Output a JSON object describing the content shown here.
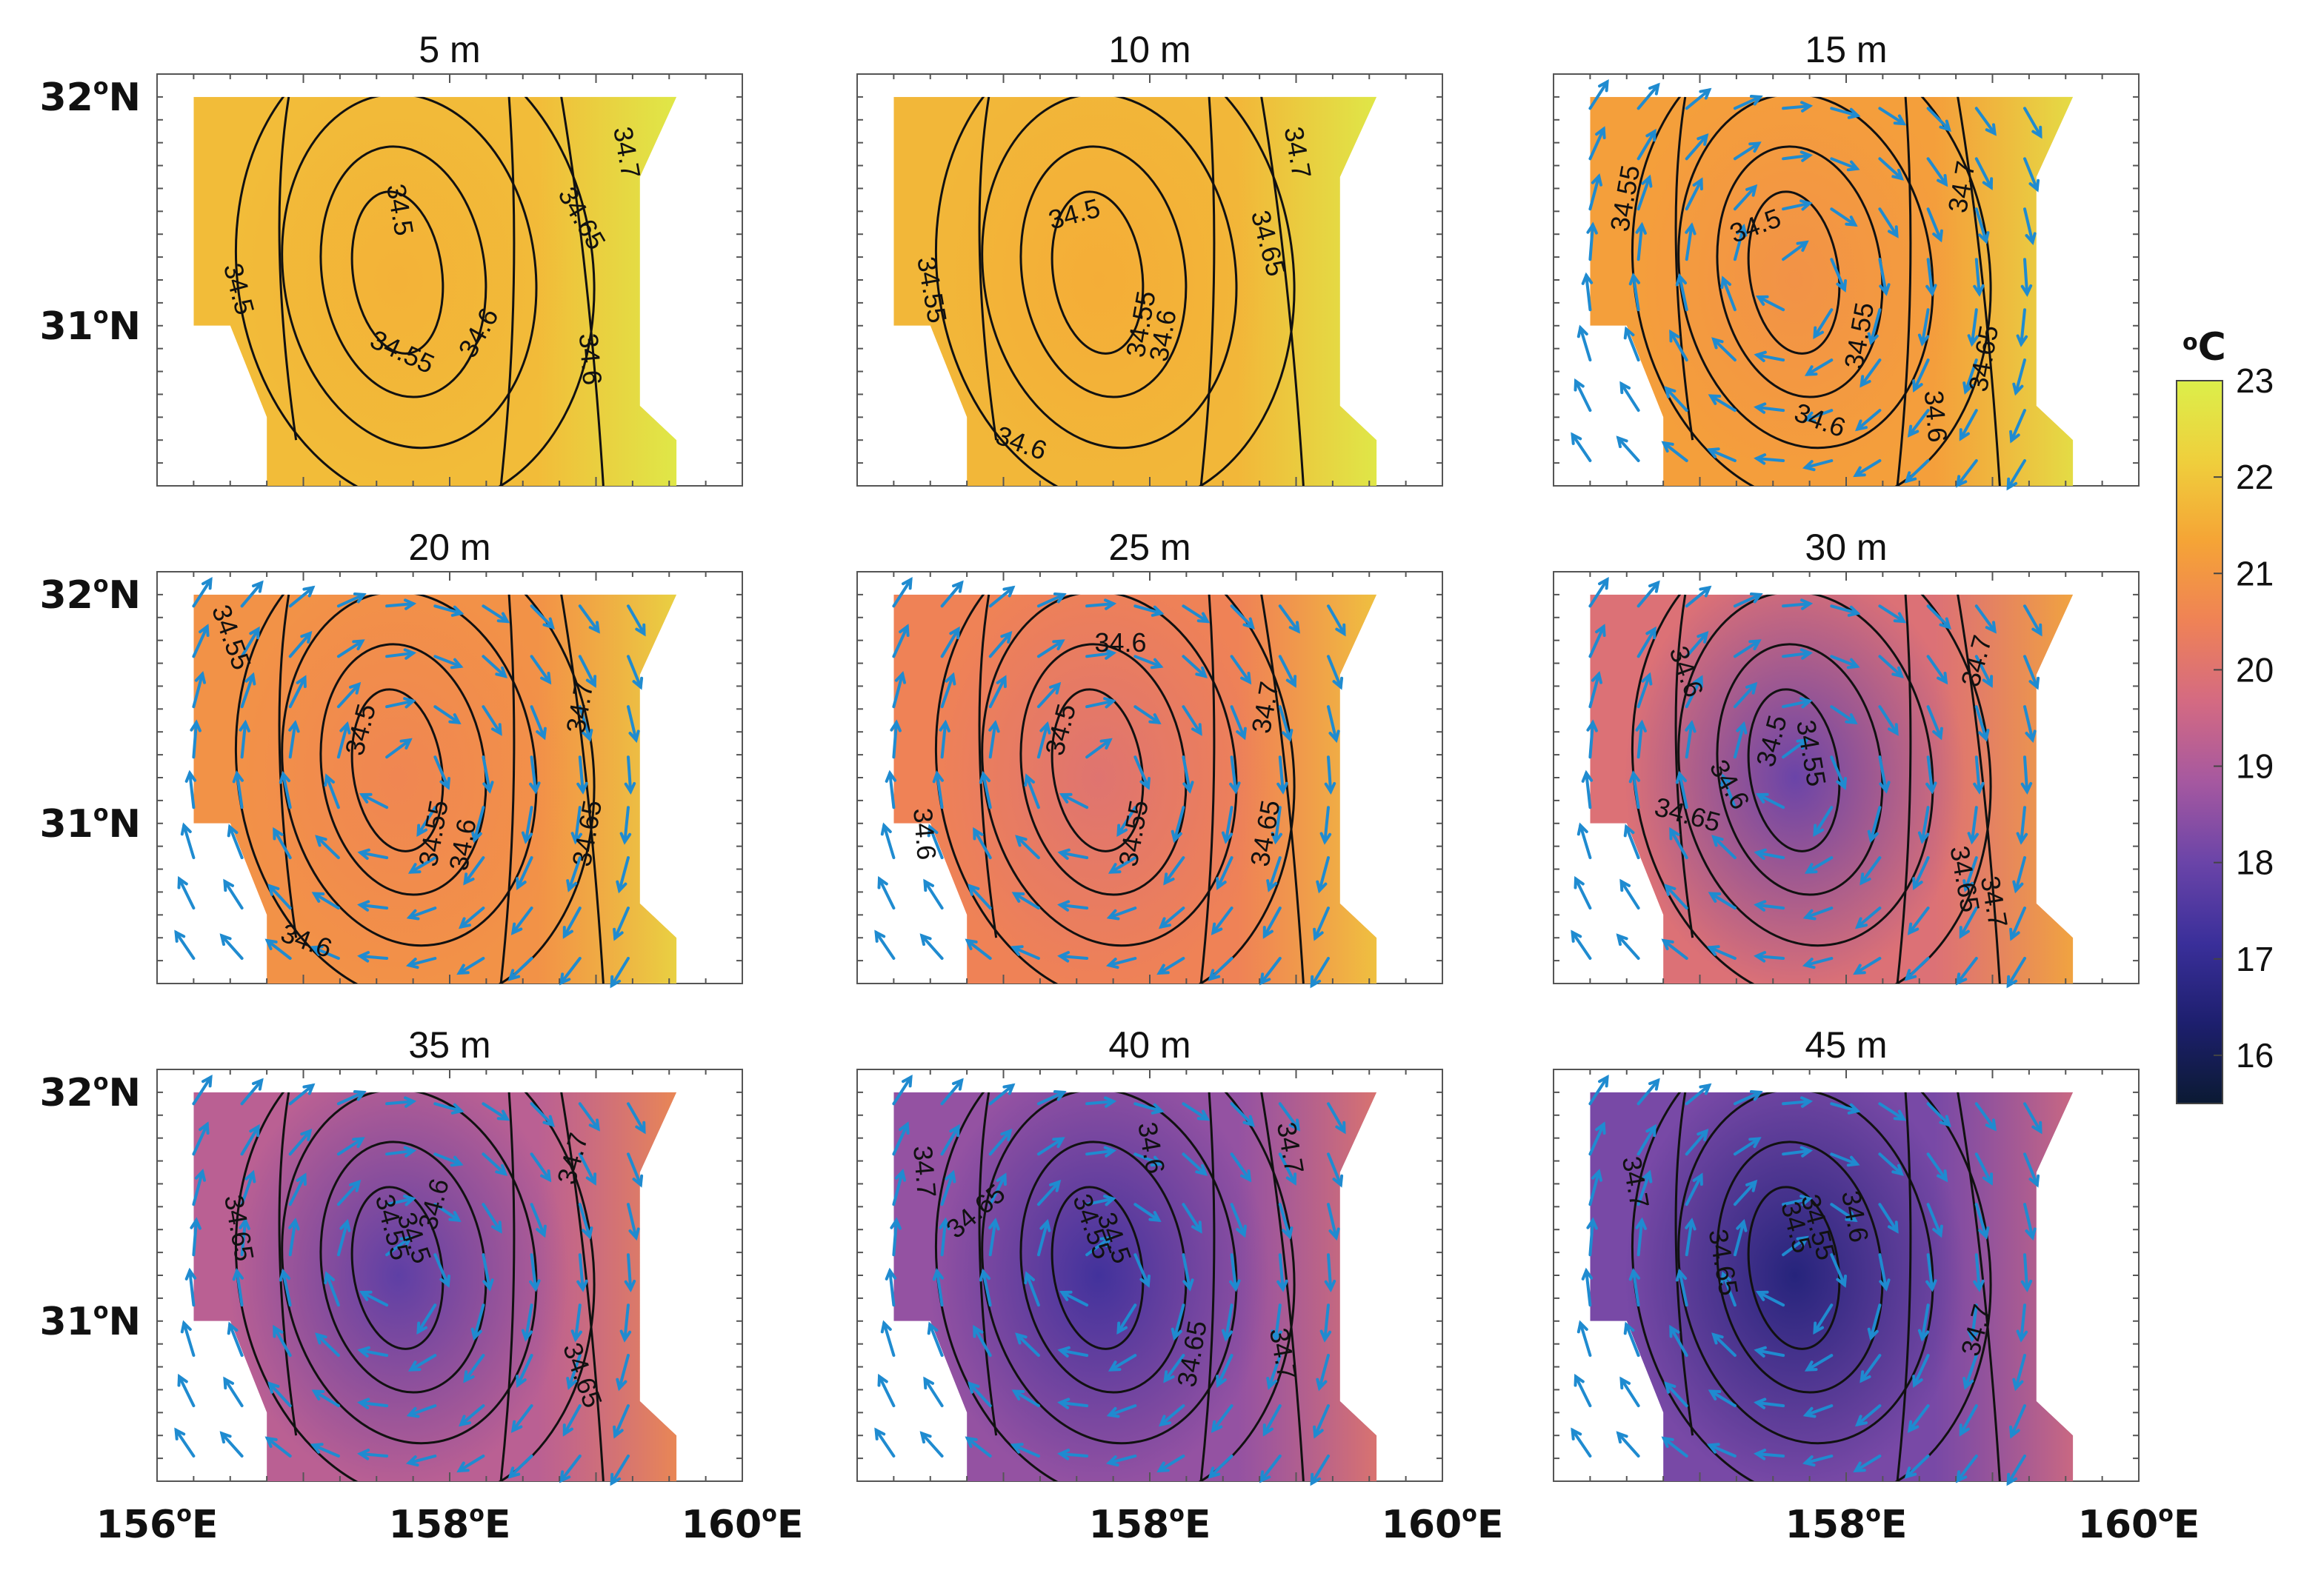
{
  "chart_data": {
    "type": "heatmap",
    "x_ticks": [
      {
        "value": 156,
        "deg": "156",
        "sup": "o",
        "hemi": "E"
      },
      {
        "value": 158,
        "deg": "158",
        "sup": "o",
        "hemi": "E"
      },
      {
        "value": 160,
        "deg": "160",
        "sup": "o",
        "hemi": "E"
      }
    ],
    "y_ticks": [
      {
        "value": 32,
        "deg": "32",
        "sup": "o",
        "hemi": "N"
      },
      {
        "value": 31,
        "deg": "31",
        "sup": "o",
        "hemi": "N"
      }
    ],
    "xlim": [
      156,
      160
    ],
    "ylim": [
      30.3,
      32.1
    ],
    "colorbar": {
      "unit_sup": "o",
      "unit": "C",
      "ticks": [
        23,
        22,
        21,
        20,
        19,
        18,
        17,
        16
      ],
      "range": [
        15.5,
        23
      ],
      "colors": [
        "#0b1a33",
        "#1d1f6e",
        "#3a2f9a",
        "#6a44a8",
        "#a558a0",
        "#d46a82",
        "#ef8256",
        "#f5a436",
        "#efcf3c",
        "#dcef4a"
      ]
    },
    "panels": [
      {
        "title": "5 m",
        "depth": 5,
        "mean_temp": 21.8,
        "core_temp": 21.6,
        "vectors": false,
        "contour_labels": [
          {
            "text": "34.5",
            "lon": 157.6,
            "lat": 31.5,
            "rot": 80
          },
          {
            "text": "34.5",
            "lon": 156.5,
            "lat": 31.15,
            "rot": 75
          },
          {
            "text": "34.55",
            "lon": 157.65,
            "lat": 30.85,
            "rot": 25
          },
          {
            "text": "34.6",
            "lon": 158.25,
            "lat": 30.95,
            "rot": -60
          },
          {
            "text": "34.65",
            "lon": 158.85,
            "lat": 31.45,
            "rot": 60
          },
          {
            "text": "34.6",
            "lon": 158.9,
            "lat": 30.85,
            "rot": 85
          },
          {
            "text": "34.7",
            "lon": 159.15,
            "lat": 31.75,
            "rot": 80
          }
        ]
      },
      {
        "title": "10 m",
        "depth": 10,
        "mean_temp": 21.7,
        "core_temp": 21.5,
        "vectors": false,
        "contour_labels": [
          {
            "text": "34.5",
            "lon": 157.5,
            "lat": 31.45,
            "rot": -15
          },
          {
            "text": "34.55",
            "lon": 156.45,
            "lat": 31.15,
            "rot": 80
          },
          {
            "text": "34.55",
            "lon": 158.0,
            "lat": 31.0,
            "rot": -80
          },
          {
            "text": "34.6",
            "lon": 158.15,
            "lat": 30.95,
            "rot": -80
          },
          {
            "text": "34.65",
            "lon": 158.75,
            "lat": 31.35,
            "rot": 75
          },
          {
            "text": "34.7",
            "lon": 158.95,
            "lat": 31.75,
            "rot": 80
          },
          {
            "text": "34.6",
            "lon": 157.1,
            "lat": 30.45,
            "rot": 20
          }
        ]
      },
      {
        "title": "15 m",
        "depth": 15,
        "mean_temp": 21.2,
        "core_temp": 20.9,
        "vectors": true,
        "contour_labels": [
          {
            "text": "34.55",
            "lon": 156.55,
            "lat": 31.55,
            "rot": -80
          },
          {
            "text": "34.5",
            "lon": 157.4,
            "lat": 31.4,
            "rot": -20
          },
          {
            "text": "34.55",
            "lon": 158.15,
            "lat": 30.95,
            "rot": -80
          },
          {
            "text": "34.6",
            "lon": 157.8,
            "lat": 30.55,
            "rot": 20
          },
          {
            "text": "34.6",
            "lon": 158.55,
            "lat": 30.6,
            "rot": 85
          },
          {
            "text": "34.65",
            "lon": 159.0,
            "lat": 30.85,
            "rot": -80
          },
          {
            "text": "34.7",
            "lon": 158.85,
            "lat": 31.6,
            "rot": -80
          }
        ]
      },
      {
        "title": "20 m",
        "depth": 20,
        "mean_temp": 20.9,
        "core_temp": 20.6,
        "vectors": true,
        "contour_labels": [
          {
            "text": "34.55",
            "lon": 156.45,
            "lat": 31.8,
            "rot": 70
          },
          {
            "text": "34.5",
            "lon": 157.45,
            "lat": 31.4,
            "rot": -75
          },
          {
            "text": "34.55",
            "lon": 157.95,
            "lat": 30.95,
            "rot": -80
          },
          {
            "text": "34.6",
            "lon": 158.15,
            "lat": 30.9,
            "rot": -80
          },
          {
            "text": "34.65",
            "lon": 159.0,
            "lat": 30.95,
            "rot": -80
          },
          {
            "text": "34.7",
            "lon": 158.95,
            "lat": 31.5,
            "rot": -80
          },
          {
            "text": "34.6",
            "lon": 157.0,
            "lat": 30.45,
            "rot": 20
          }
        ]
      },
      {
        "title": "25 m",
        "depth": 25,
        "mean_temp": 20.5,
        "core_temp": 20.0,
        "vectors": true,
        "contour_labels": [
          {
            "text": "34.6",
            "lon": 157.8,
            "lat": 31.75,
            "rot": 0
          },
          {
            "text": "34.5",
            "lon": 157.45,
            "lat": 31.4,
            "rot": -75
          },
          {
            "text": "34.6",
            "lon": 156.4,
            "lat": 30.95,
            "rot": 85
          },
          {
            "text": "34.55",
            "lon": 157.95,
            "lat": 30.95,
            "rot": -80
          },
          {
            "text": "34.65",
            "lon": 158.85,
            "lat": 30.95,
            "rot": -80
          },
          {
            "text": "34.7",
            "lon": 158.85,
            "lat": 31.5,
            "rot": -80
          }
        ]
      },
      {
        "title": "30 m",
        "depth": 30,
        "mean_temp": 19.9,
        "core_temp": 18.0,
        "vectors": true,
        "contour_labels": [
          {
            "text": "34.6",
            "lon": 156.85,
            "lat": 31.65,
            "rot": 70
          },
          {
            "text": "34.5",
            "lon": 157.55,
            "lat": 31.35,
            "rot": -75
          },
          {
            "text": "34.55",
            "lon": 157.7,
            "lat": 31.3,
            "rot": 80
          },
          {
            "text": "34.6",
            "lon": 157.15,
            "lat": 31.15,
            "rot": 60
          },
          {
            "text": "34.65",
            "lon": 156.9,
            "lat": 31.0,
            "rot": 15
          },
          {
            "text": "34.65",
            "lon": 158.75,
            "lat": 30.75,
            "rot": 80
          },
          {
            "text": "34.7",
            "lon": 158.95,
            "lat": 30.65,
            "rot": 80
          },
          {
            "text": "34.7",
            "lon": 158.95,
            "lat": 31.7,
            "rot": -75
          }
        ]
      },
      {
        "title": "35 m",
        "depth": 35,
        "mean_temp": 19.2,
        "core_temp": 17.8,
        "vectors": true,
        "contour_labels": [
          {
            "text": "34.65",
            "lon": 156.5,
            "lat": 31.4,
            "rot": 80
          },
          {
            "text": "34.55",
            "lon": 157.55,
            "lat": 31.4,
            "rot": 75
          },
          {
            "text": "34.5",
            "lon": 157.7,
            "lat": 31.35,
            "rot": 70
          },
          {
            "text": "34.6",
            "lon": 157.95,
            "lat": 31.5,
            "rot": -75
          },
          {
            "text": "34.65",
            "lon": 158.85,
            "lat": 30.75,
            "rot": 70
          },
          {
            "text": "34.7",
            "lon": 158.9,
            "lat": 31.7,
            "rot": -75
          }
        ]
      },
      {
        "title": "40 m",
        "depth": 40,
        "mean_temp": 18.6,
        "core_temp": 17.3,
        "vectors": true,
        "contour_labels": [
          {
            "text": "34.7",
            "lon": 156.4,
            "lat": 31.65,
            "rot": 85
          },
          {
            "text": "34.65",
            "lon": 156.85,
            "lat": 31.45,
            "rot": -40
          },
          {
            "text": "34.55",
            "lon": 157.55,
            "lat": 31.4,
            "rot": 70
          },
          {
            "text": "34.5",
            "lon": 157.7,
            "lat": 31.35,
            "rot": 70
          },
          {
            "text": "34.6",
            "lon": 157.95,
            "lat": 31.75,
            "rot": 80
          },
          {
            "text": "34.7",
            "lon": 158.9,
            "lat": 31.75,
            "rot": 80
          },
          {
            "text": "34.65",
            "lon": 158.35,
            "lat": 30.85,
            "rot": -80
          },
          {
            "text": "34.7",
            "lon": 158.85,
            "lat": 30.85,
            "rot": 80
          }
        ]
      },
      {
        "title": "45 m",
        "depth": 45,
        "mean_temp": 18.2,
        "core_temp": 16.6,
        "vectors": true,
        "contour_labels": [
          {
            "text": "34.7",
            "lon": 156.5,
            "lat": 31.6,
            "rot": 80
          },
          {
            "text": "34.65",
            "lon": 157.1,
            "lat": 31.25,
            "rot": 80
          },
          {
            "text": "34.5",
            "lon": 157.6,
            "lat": 31.4,
            "rot": 75
          },
          {
            "text": "34.55",
            "lon": 157.75,
            "lat": 31.4,
            "rot": 75
          },
          {
            "text": "34.6",
            "lon": 158.0,
            "lat": 31.45,
            "rot": 80
          },
          {
            "text": "34.7",
            "lon": 158.95,
            "lat": 30.95,
            "rot": -75
          }
        ]
      }
    ]
  }
}
